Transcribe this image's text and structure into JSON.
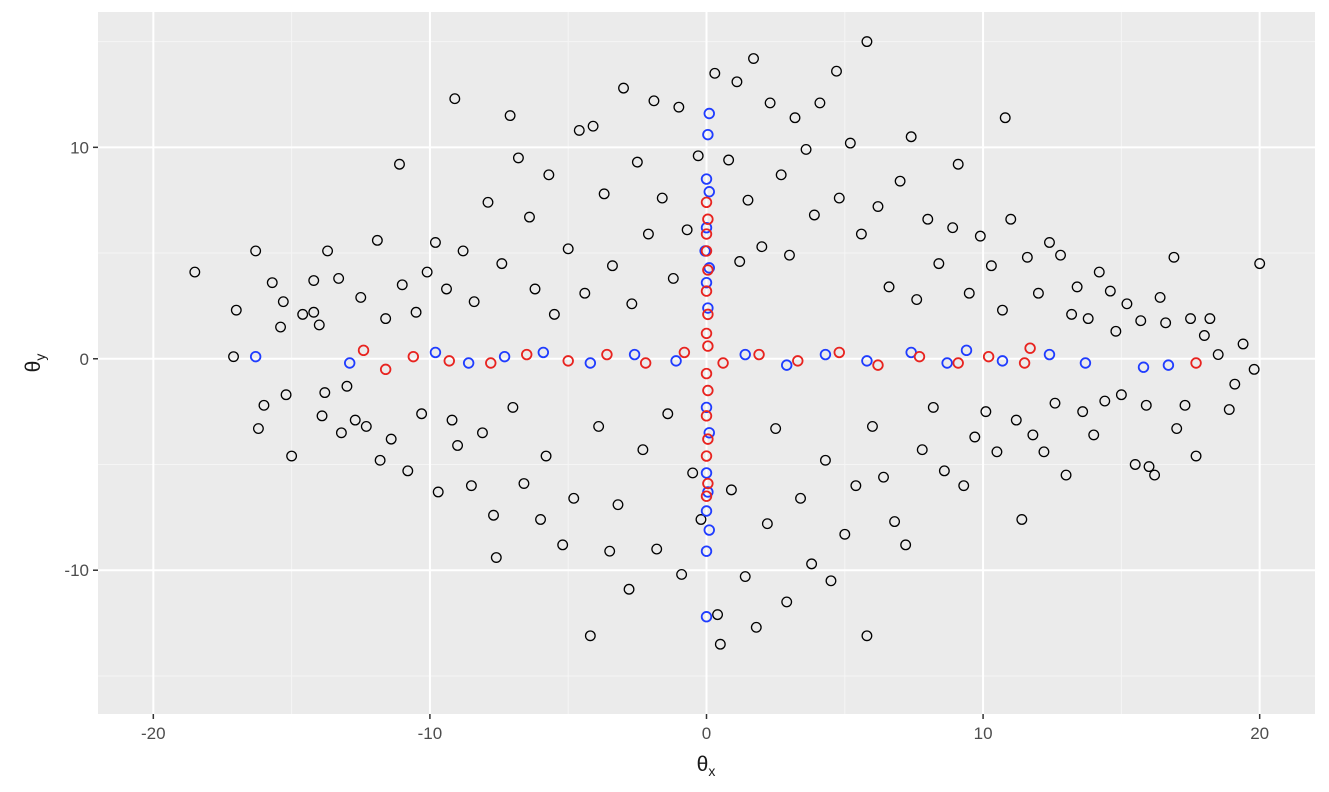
{
  "chart_data": {
    "type": "scatter",
    "title": "",
    "xlabel": {
      "symbol": "θ",
      "subscript": "x"
    },
    "ylabel": {
      "symbol": "θ",
      "subscript": "y"
    },
    "xlim": [
      -22,
      22
    ],
    "ylim": [
      -16.8,
      16.4
    ],
    "x_ticks": [
      -20,
      -10,
      0,
      10,
      20
    ],
    "x_tick_labels": [
      "-20",
      "-10",
      "0",
      "10",
      "20"
    ],
    "y_ticks": [
      -10,
      0,
      10
    ],
    "y_tick_labels": [
      "-10",
      "0",
      "10"
    ],
    "grid": true,
    "legend": "none",
    "colors": {
      "panel_background": "#ebebeb",
      "grid_major": "#ffffff",
      "grid_minor": "#f5f5f5",
      "tick_text": "#4d4d4d",
      "series_colors": [
        "#000000",
        "#1f3cff",
        "#e8231f"
      ]
    },
    "series": [
      {
        "color": "#000000",
        "marker": "open-circle",
        "points": [
          [
            -18.5,
            4.1
          ],
          [
            -17,
            2.3
          ],
          [
            -17.1,
            0.1
          ],
          [
            -16.3,
            5.1
          ],
          [
            -16.2,
            -3.3
          ],
          [
            -16,
            -2.2
          ],
          [
            -15.7,
            3.6
          ],
          [
            -15.4,
            1.5
          ],
          [
            -15.2,
            -1.7
          ],
          [
            -15.3,
            2.7
          ],
          [
            -15,
            -4.6
          ],
          [
            -14.6,
            2.1
          ],
          [
            -14.2,
            2.2
          ],
          [
            -14.2,
            3.7
          ],
          [
            -14,
            1.6
          ],
          [
            -13.9,
            -2.7
          ],
          [
            -13.8,
            -1.6
          ],
          [
            -13.7,
            5.1
          ],
          [
            -13.3,
            3.8
          ],
          [
            -13.2,
            -3.5
          ],
          [
            -13,
            -1.3
          ],
          [
            -12.7,
            -2.9
          ],
          [
            -12.5,
            2.9
          ],
          [
            -12.3,
            -3.2
          ],
          [
            -11.9,
            5.6
          ],
          [
            -11.8,
            -4.8
          ],
          [
            -11.6,
            1.9
          ],
          [
            -11.4,
            -3.8
          ],
          [
            -11.1,
            9.2
          ],
          [
            -11,
            3.5
          ],
          [
            -10.8,
            -5.3
          ],
          [
            -10.5,
            2.2
          ],
          [
            -10.3,
            -2.6
          ],
          [
            -10.1,
            4.1
          ],
          [
            -9.8,
            5.5
          ],
          [
            -9.7,
            -6.3
          ],
          [
            -9.4,
            3.3
          ],
          [
            -9.2,
            -2.9
          ],
          [
            -9.1,
            12.3
          ],
          [
            -9,
            -4.1
          ],
          [
            -8.8,
            5.1
          ],
          [
            -8.5,
            -6
          ],
          [
            -8.4,
            2.7
          ],
          [
            -8.1,
            -3.5
          ],
          [
            -7.9,
            7.4
          ],
          [
            -7.7,
            -7.4
          ],
          [
            -7.6,
            -9.4
          ],
          [
            -7.4,
            4.5
          ],
          [
            -7.1,
            11.5
          ],
          [
            -7,
            -2.3
          ],
          [
            -6.8,
            9.5
          ],
          [
            -6.6,
            -5.9
          ],
          [
            -6.4,
            6.7
          ],
          [
            -6.2,
            3.3
          ],
          [
            -6,
            -7.6
          ],
          [
            -5.8,
            -4.6
          ],
          [
            -5.7,
            8.7
          ],
          [
            -5.5,
            2.1
          ],
          [
            -5.2,
            -8.8
          ],
          [
            -5,
            5.2
          ],
          [
            -4.8,
            -6.6
          ],
          [
            -4.6,
            10.8
          ],
          [
            -4.4,
            3.1
          ],
          [
            -4.2,
            -13.1
          ],
          [
            -4.1,
            11
          ],
          [
            -3.9,
            -3.2
          ],
          [
            -3.7,
            7.8
          ],
          [
            -3.5,
            -9.1
          ],
          [
            -3.4,
            4.4
          ],
          [
            -3.2,
            -6.9
          ],
          [
            -3,
            12.8
          ],
          [
            -2.8,
            -10.9
          ],
          [
            -2.7,
            2.6
          ],
          [
            -2.5,
            9.3
          ],
          [
            -2.3,
            -4.3
          ],
          [
            -2.1,
            5.9
          ],
          [
            -1.9,
            12.2
          ],
          [
            -1.8,
            -9
          ],
          [
            -1.6,
            7.6
          ],
          [
            -1.4,
            -2.6
          ],
          [
            -1.2,
            3.8
          ],
          [
            -1,
            11.9
          ],
          [
            -0.9,
            -10.2
          ],
          [
            -0.7,
            6.1
          ],
          [
            -0.5,
            -5.4
          ],
          [
            -0.3,
            9.6
          ],
          [
            -0.2,
            -7.6
          ],
          [
            0.3,
            13.5
          ],
          [
            0.4,
            -12.1
          ],
          [
            0.5,
            -13.5
          ],
          [
            0.8,
            9.4
          ],
          [
            0.9,
            -6.2
          ],
          [
            1.1,
            13.1
          ],
          [
            1.2,
            4.6
          ],
          [
            1.4,
            -10.3
          ],
          [
            1.5,
            7.5
          ],
          [
            1.7,
            14.2
          ],
          [
            1.8,
            -12.7
          ],
          [
            2,
            5.3
          ],
          [
            2.2,
            -7.8
          ],
          [
            2.3,
            12.1
          ],
          [
            2.5,
            -3.3
          ],
          [
            2.7,
            8.7
          ],
          [
            2.9,
            -11.5
          ],
          [
            3,
            4.9
          ],
          [
            3.2,
            11.4
          ],
          [
            3.4,
            -6.6
          ],
          [
            3.6,
            9.9
          ],
          [
            3.8,
            -9.7
          ],
          [
            3.9,
            6.8
          ],
          [
            4.1,
            12.1
          ],
          [
            4.3,
            -4.8
          ],
          [
            4.5,
            -10.5
          ],
          [
            4.7,
            13.6
          ],
          [
            4.8,
            7.6
          ],
          [
            5,
            -8.3
          ],
          [
            5.2,
            10.2
          ],
          [
            5.4,
            -6
          ],
          [
            5.6,
            5.9
          ],
          [
            5.8,
            15
          ],
          [
            5.8,
            -13.1
          ],
          [
            6,
            -3.2
          ],
          [
            6.2,
            7.2
          ],
          [
            6.4,
            -5.6
          ],
          [
            6.6,
            3.4
          ],
          [
            6.8,
            -7.7
          ],
          [
            7,
            8.4
          ],
          [
            7.2,
            -8.8
          ],
          [
            7.4,
            10.5
          ],
          [
            7.6,
            2.8
          ],
          [
            7.8,
            -4.3
          ],
          [
            8,
            6.6
          ],
          [
            8.2,
            -2.3
          ],
          [
            8.4,
            4.5
          ],
          [
            8.6,
            -5.3
          ],
          [
            8.9,
            6.2
          ],
          [
            9.1,
            9.2
          ],
          [
            9.3,
            -6
          ],
          [
            9.5,
            3.1
          ],
          [
            9.7,
            -3.7
          ],
          [
            9.9,
            5.8
          ],
          [
            10.1,
            -2.5
          ],
          [
            10.3,
            4.4
          ],
          [
            10.5,
            -4.4
          ],
          [
            10.7,
            2.3
          ],
          [
            10.8,
            11.4
          ],
          [
            11,
            6.6
          ],
          [
            11.2,
            -2.9
          ],
          [
            11.4,
            -7.6
          ],
          [
            11.6,
            4.8
          ],
          [
            11.8,
            -3.6
          ],
          [
            12,
            3.1
          ],
          [
            12.2,
            -4.4
          ],
          [
            12.4,
            5.5
          ],
          [
            12.6,
            -2.1
          ],
          [
            12.8,
            4.9
          ],
          [
            13,
            -5.5
          ],
          [
            13.2,
            2.1
          ],
          [
            13.4,
            3.4
          ],
          [
            13.6,
            -2.5
          ],
          [
            13.8,
            1.9
          ],
          [
            14,
            -3.6
          ],
          [
            14.2,
            4.1
          ],
          [
            14.4,
            -2
          ],
          [
            14.6,
            3.2
          ],
          [
            14.8,
            1.3
          ],
          [
            15,
            -1.7
          ],
          [
            15.2,
            2.6
          ],
          [
            15.5,
            -5
          ],
          [
            15.7,
            1.8
          ],
          [
            15.9,
            -2.2
          ],
          [
            16,
            -5.1
          ],
          [
            16.2,
            -5.5
          ],
          [
            16.4,
            2.9
          ],
          [
            16.6,
            1.7
          ],
          [
            16.9,
            4.8
          ],
          [
            17,
            -3.3
          ],
          [
            17.3,
            -2.2
          ],
          [
            17.5,
            1.9
          ],
          [
            17.7,
            -4.6
          ],
          [
            18,
            1.1
          ],
          [
            18.2,
            1.9
          ],
          [
            18.5,
            0.2
          ],
          [
            18.9,
            -2.4
          ],
          [
            19.1,
            -1.2
          ],
          [
            19.4,
            0.7
          ],
          [
            19.8,
            -0.5
          ],
          [
            20,
            4.5
          ]
        ]
      },
      {
        "color": "#1f3cff",
        "marker": "open-circle",
        "points": [
          [
            -16.3,
            0.1
          ],
          [
            -12.9,
            -0.2
          ],
          [
            -9.8,
            0.3
          ],
          [
            -8.6,
            -0.2
          ],
          [
            -7.3,
            0.1
          ],
          [
            -5.9,
            0.3
          ],
          [
            -4.2,
            -0.2
          ],
          [
            -2.6,
            0.2
          ],
          [
            -1.1,
            -0.1
          ],
          [
            1.4,
            0.2
          ],
          [
            2.9,
            -0.3
          ],
          [
            4.3,
            0.2
          ],
          [
            5.8,
            -0.1
          ],
          [
            7.4,
            0.3
          ],
          [
            8.7,
            -0.2
          ],
          [
            9.4,
            0.4
          ],
          [
            10.7,
            -0.1
          ],
          [
            12.4,
            0.2
          ],
          [
            13.7,
            -0.2
          ],
          [
            15.8,
            -0.4
          ],
          [
            16.7,
            -0.3
          ],
          [
            0.1,
            11.6
          ],
          [
            0.05,
            10.6
          ],
          [
            0.0,
            8.5
          ],
          [
            0.1,
            7.9
          ],
          [
            0.0,
            6.2
          ],
          [
            -0.05,
            5.1
          ],
          [
            0.1,
            4.3
          ],
          [
            0.0,
            3.6
          ],
          [
            0.05,
            2.4
          ],
          [
            0.0,
            -2.3
          ],
          [
            0.1,
            -3.5
          ],
          [
            0.0,
            -5.4
          ],
          [
            0.05,
            -6.3
          ],
          [
            0.0,
            -7.2
          ],
          [
            0.1,
            -8.1
          ],
          [
            0.0,
            -9.1
          ],
          [
            0.0,
            -12.2
          ]
        ]
      },
      {
        "color": "#e8231f",
        "marker": "open-circle",
        "points": [
          [
            -12.4,
            0.4
          ],
          [
            -11.6,
            -0.5
          ],
          [
            -10.6,
            0.1
          ],
          [
            -9.3,
            -0.1
          ],
          [
            -7.8,
            -0.2
          ],
          [
            -6.5,
            0.2
          ],
          [
            -5,
            -0.1
          ],
          [
            -3.6,
            0.2
          ],
          [
            -2.2,
            -0.2
          ],
          [
            -0.8,
            0.3
          ],
          [
            0.6,
            -0.2
          ],
          [
            1.9,
            0.2
          ],
          [
            3.3,
            -0.1
          ],
          [
            4.8,
            0.3
          ],
          [
            6.2,
            -0.3
          ],
          [
            7.7,
            0.1
          ],
          [
            9.1,
            -0.2
          ],
          [
            10.2,
            0.1
          ],
          [
            11.5,
            -0.2
          ],
          [
            11.7,
            0.5
          ],
          [
            17.7,
            -0.2
          ],
          [
            0.0,
            7.4
          ],
          [
            0.05,
            6.6
          ],
          [
            0.0,
            5.9
          ],
          [
            0.0,
            5.1
          ],
          [
            0.05,
            4.2
          ],
          [
            0.0,
            3.2
          ],
          [
            0.05,
            2.1
          ],
          [
            0.0,
            1.2
          ],
          [
            0.05,
            0.6
          ],
          [
            0.0,
            -0.7
          ],
          [
            0.05,
            -1.5
          ],
          [
            0.0,
            -2.7
          ],
          [
            0.05,
            -3.8
          ],
          [
            0.0,
            -4.6
          ],
          [
            0.05,
            -5.9
          ],
          [
            0.0,
            -6.5
          ]
        ]
      }
    ]
  }
}
